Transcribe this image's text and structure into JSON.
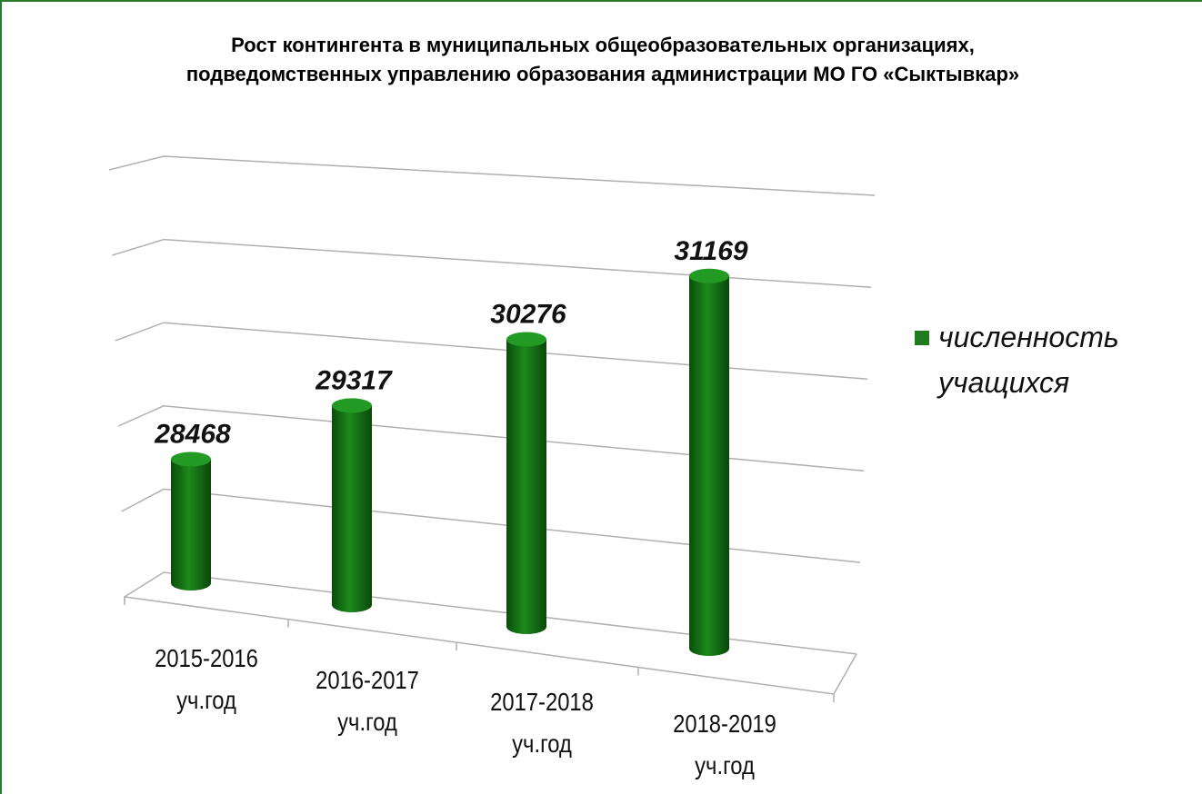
{
  "chart_data": {
    "type": "bar3d",
    "title": "Рост контингента в муниципальных общеобразовательных организациях,\nподведомственных управлению образования администрации МО ГО «Сыктывкар»",
    "categories": [
      "2015-2016\nуч.год",
      "2016-2017\nуч.год",
      "2017-2018\nуч.год",
      "2018-2019\nуч.год"
    ],
    "series": [
      {
        "name": "численность\nучащихся",
        "color": "#1e7b1e",
        "values": [
          28468,
          29317,
          30276,
          31169
        ]
      }
    ],
    "ylim": [
      27000,
      32000
    ],
    "yticks": [
      27000,
      28000,
      29000,
      30000,
      31000,
      32000
    ],
    "grid": true,
    "legend": "right"
  }
}
